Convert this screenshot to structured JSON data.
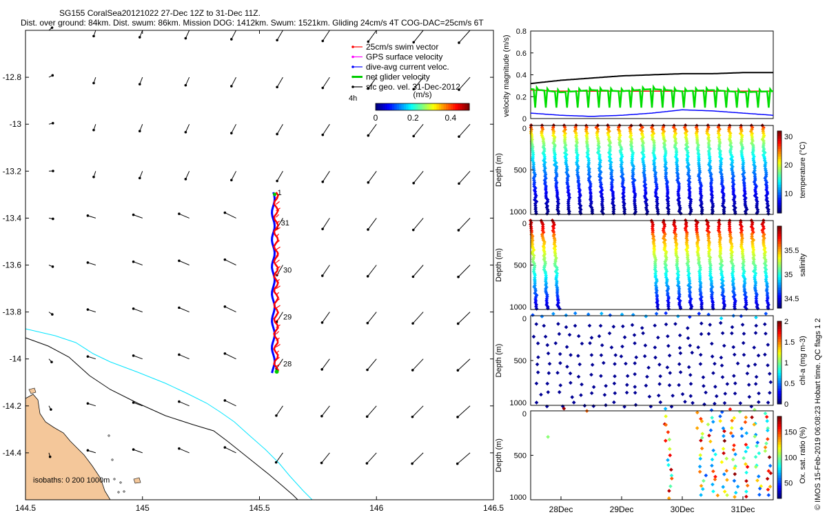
{
  "header": {
    "line1": "SG155 CoralSea20121022 27-Dec 12Z to 31-Dec 11Z.",
    "line2": "Dist. over ground: 84km. Dist. swum: 86km. Mission DOG: 1412km. Swum: 1521km. Gliding 24cm/s 4T COG-DAC=25cm/s 6T"
  },
  "chart_data": [
    {
      "type": "scatter",
      "id": "map",
      "x_ticks": [
        "144.5",
        "145",
        "145.5",
        "146",
        "146.5"
      ],
      "y_ticks": [
        "-12.8",
        "-13",
        "-13.2",
        "-13.4",
        "-13.6",
        "-13.8",
        "-14",
        "-14.2",
        "-14.4"
      ],
      "xlim": [
        144.5,
        146.5
      ],
      "ylim": [
        -14.6,
        -12.6
      ],
      "legend": {
        "position": "top-right",
        "items": [
          {
            "label": "25cm/s swim vector",
            "color": "#ff0000"
          },
          {
            "label": "GPS surface velocity",
            "color": "#ff00ff"
          },
          {
            "label": "dive-avg current veloc.",
            "color": "#0000ff"
          },
          {
            "label": "net glider velocity",
            "color": "#00cc00"
          },
          {
            "label": "sfc geo. vel. 31-Dec-2012",
            "color": "#000000"
          }
        ]
      },
      "colorbar": {
        "label": "(m/s)",
        "ticks": [
          "0",
          "0.2",
          "0.4"
        ],
        "range": [
          0,
          0.5
        ]
      },
      "note_4h": "4h",
      "track_day_labels": [
        {
          "label": "31",
          "lon": 145.58,
          "lat": -13.42
        },
        {
          "label": "30",
          "lon": 145.59,
          "lat": -13.62
        },
        {
          "label": "29",
          "lon": 145.59,
          "lat": -13.82
        },
        {
          "label": "28",
          "lon": 145.59,
          "lat": -14.02
        },
        {
          "label": "1",
          "lon": 145.565,
          "lat": -13.29
        }
      ],
      "isobath_label": "isobaths: 0   200  1000m",
      "isobaths": {
        "200m": "#00e5ff",
        "1000m": "#000000"
      },
      "land_color": "#f4c79a"
    },
    {
      "type": "line",
      "id": "velocity",
      "ylabel": "velocity magnitude (m/s)",
      "ylim": [
        0,
        0.8
      ],
      "y_ticks": [
        "0",
        "0.2",
        "0.4",
        "0.6",
        "0.8"
      ],
      "x": [
        0,
        0.5,
        1,
        1.5,
        2,
        2.5,
        3,
        3.5,
        4
      ],
      "series": [
        {
          "color": "#000000",
          "values": [
            0.32,
            0.35,
            0.37,
            0.39,
            0.4,
            0.41,
            0.41,
            0.42,
            0.42
          ]
        },
        {
          "color": "#ff0000",
          "values": [
            0.26,
            0.25,
            0.25,
            0.25,
            0.25,
            0.25,
            0.25,
            0.25,
            0.25
          ]
        },
        {
          "color": "#00dd00",
          "values": [
            0.27,
            0.24,
            0.26,
            0.25,
            0.27,
            0.25,
            0.26,
            0.24,
            0.25
          ]
        },
        {
          "color": "#0000ff",
          "values": [
            0.05,
            0.03,
            0.02,
            0.03,
            0.05,
            0.08,
            0.07,
            0.05,
            0.03
          ]
        }
      ]
    },
    {
      "type": "scatter",
      "id": "temperature",
      "ylabel": "Depth (m)",
      "clabel": "temperature (°C)",
      "y_ticks": [
        "0",
        "500",
        "1000"
      ],
      "ylim": [
        1000,
        0
      ],
      "c_ticks": [
        "10",
        "20",
        "30"
      ],
      "crange": [
        3,
        32
      ]
    },
    {
      "type": "scatter",
      "id": "salinity",
      "ylabel": "Depth (m)",
      "clabel": "salinity",
      "y_ticks": [
        "0",
        "500",
        "1000"
      ],
      "ylim": [
        1000,
        0
      ],
      "c_ticks": [
        "34.5",
        "35",
        "35.5"
      ],
      "crange": [
        34.3,
        36.0
      ]
    },
    {
      "type": "scatter",
      "id": "chla",
      "ylabel": "Depth (m)",
      "clabel": "chl-a (mg m-3)",
      "y_ticks": [
        "0",
        "500",
        "1000"
      ],
      "ylim": [
        1000,
        0
      ],
      "c_ticks": [
        "0",
        "0.5",
        "1",
        "1.5",
        "2"
      ],
      "crange": [
        0,
        2
      ]
    },
    {
      "type": "scatter",
      "id": "oxygen",
      "ylabel": "Depth (m)",
      "clabel": "Ox. sat. ratio (%)",
      "y_ticks": [
        "0",
        "500",
        "1000"
      ],
      "ylim": [
        1000,
        0
      ],
      "c_ticks": [
        "50",
        "100",
        "150"
      ],
      "crange": [
        20,
        180
      ],
      "x_ticks": [
        "28Dec",
        "29Dec",
        "30Dec",
        "31Dec"
      ]
    }
  ],
  "side_note": "© IMOS 15-Feb-2019 06:08:23 Hobart time. QC flags 1  2"
}
